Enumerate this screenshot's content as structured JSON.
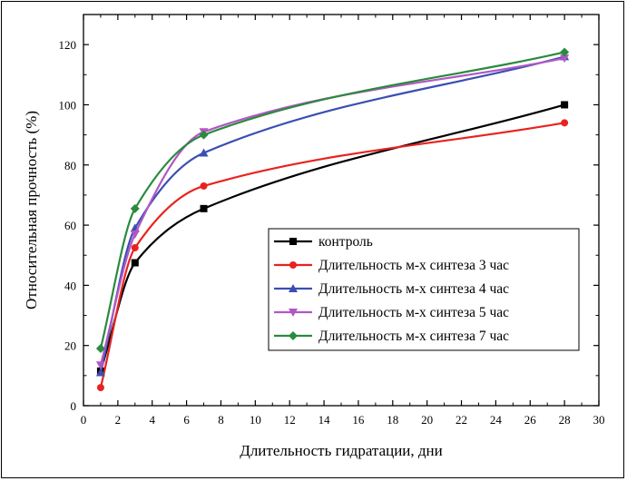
{
  "chart_data": {
    "type": "line",
    "title": "",
    "xlabel": "Длительность гидратации, дни",
    "ylabel": "Относительная прочность (%)",
    "xlim": [
      0,
      30
    ],
    "ylim": [
      0,
      130
    ],
    "xticks": [
      0,
      2,
      4,
      6,
      8,
      10,
      12,
      14,
      16,
      18,
      20,
      22,
      24,
      26,
      28,
      30
    ],
    "yticks": [
      0,
      20,
      40,
      60,
      80,
      100,
      120
    ],
    "grid": false,
    "legend_position": "center-right",
    "x": [
      1,
      3,
      7,
      28
    ],
    "series": [
      {
        "name": "контроль",
        "values": [
          11.5,
          47.5,
          65.5,
          100
        ],
        "color": "#000000",
        "marker": "square"
      },
      {
        "name": "Длительность м-х синтеза 3 час",
        "values": [
          6,
          52.5,
          73,
          94
        ],
        "color": "#e8231f",
        "marker": "circle"
      },
      {
        "name": "Длительность м-х синтеза 4 час",
        "values": [
          11,
          59,
          84,
          116
        ],
        "color": "#3a4fb3",
        "marker": "triangle-up"
      },
      {
        "name": "Длительность м-х синтеза 5 час",
        "values": [
          13.5,
          57,
          91,
          115.5
        ],
        "color": "#b157c4",
        "marker": "triangle-down"
      },
      {
        "name": "Длительность м-х синтеза 7 час",
        "values": [
          19,
          65.5,
          90,
          117.5
        ],
        "color": "#2a8a3e",
        "marker": "diamond"
      }
    ]
  }
}
